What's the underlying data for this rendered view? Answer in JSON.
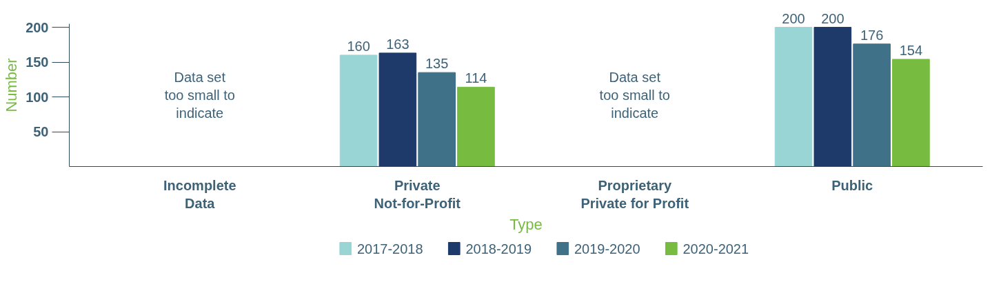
{
  "chart_data": {
    "type": "bar",
    "xlabel": "Type",
    "ylabel": "Number",
    "categories": [
      "Incomplete\nData",
      "Private\nNot-for-Profit",
      "Proprietary\nPrivate for Profit",
      "Public"
    ],
    "series": [
      {
        "name": "2017-2018",
        "color": "#9ad5d6",
        "values": [
          null,
          160,
          null,
          200
        ]
      },
      {
        "name": "2018-2019",
        "color": "#1d3a6a",
        "values": [
          null,
          163,
          null,
          200
        ]
      },
      {
        "name": "2019-2020",
        "color": "#3f7189",
        "values": [
          null,
          135,
          null,
          176
        ]
      },
      {
        "name": "2020-2021",
        "color": "#77bb41",
        "values": [
          null,
          114,
          null,
          154
        ]
      }
    ],
    "ylim": [
      0,
      205
    ],
    "yticks": [
      50,
      100,
      150,
      200
    ],
    "grid": false,
    "legend": "bottom",
    "data_labels": true,
    "annotations": [
      "Data set\ntoo small to\nindicate",
      "Data set\ntoo small to\nindicate"
    ]
  }
}
